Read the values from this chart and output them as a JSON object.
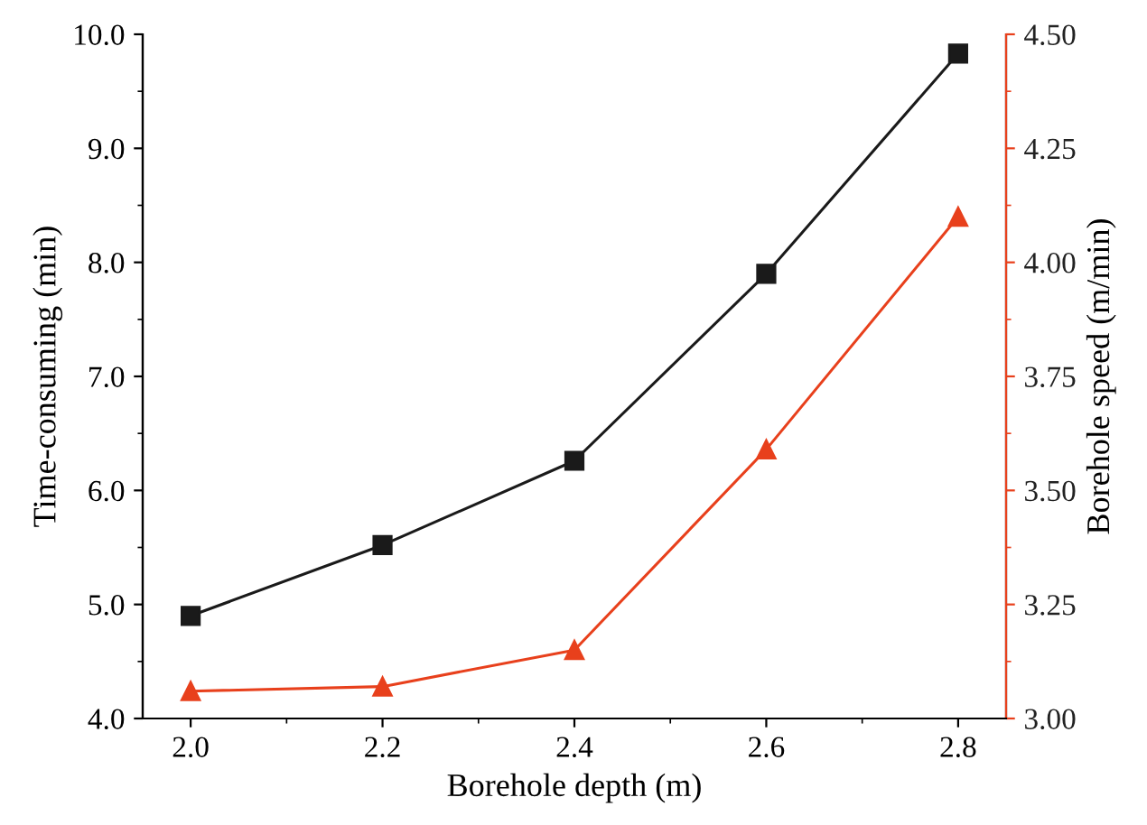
{
  "chart_data": {
    "type": "line",
    "xlabel": "Borehole depth (m)",
    "ylabel": "Time-consuming (min)",
    "y2label": "Borehole speed (m/min)",
    "x": [
      2.0,
      2.2,
      2.4,
      2.6,
      2.8
    ],
    "series": [
      {
        "color": "#1a1a1a",
        "marker": "square",
        "values": [
          4.9,
          5.52,
          6.26,
          7.9,
          9.83
        ]
      },
      {
        "color": "#e8401c",
        "marker": "triangle",
        "axis": "y2",
        "values": [
          3.06,
          3.07,
          3.15,
          3.59,
          4.1
        ]
      }
    ],
    "xlim": [
      1.95,
      2.85
    ],
    "xticks": [
      {
        "value": 2,
        "label": "2.0"
      },
      2.2,
      2.4,
      2.6,
      2.8
    ],
    "ylim": [
      4.0,
      10.0
    ],
    "yticks": [
      {
        "value": 4,
        "label": "4.0"
      },
      {
        "value": 5,
        "label": "5.0"
      },
      {
        "value": 6,
        "label": "6.0"
      },
      {
        "value": 7,
        "label": "7.0"
      },
      {
        "value": 8,
        "label": "8.0"
      },
      {
        "value": 9,
        "label": "9.0"
      },
      {
        "value": 10,
        "label": "10.0"
      }
    ],
    "y2lim": [
      3.0,
      4.5
    ],
    "y2ticks": [
      {
        "value": 3,
        "label": "3.00"
      },
      {
        "value": 3.25,
        "label": "3.25"
      },
      {
        "value": 3.5,
        "label": "3.50"
      },
      {
        "value": 3.75,
        "label": "3.75"
      },
      {
        "value": 4,
        "label": "4.00"
      },
      {
        "value": 4.25,
        "label": "4.25"
      },
      {
        "value": 4.5,
        "label": "4.50"
      }
    ],
    "grid": false,
    "legend": false,
    "line_style": "solid"
  }
}
